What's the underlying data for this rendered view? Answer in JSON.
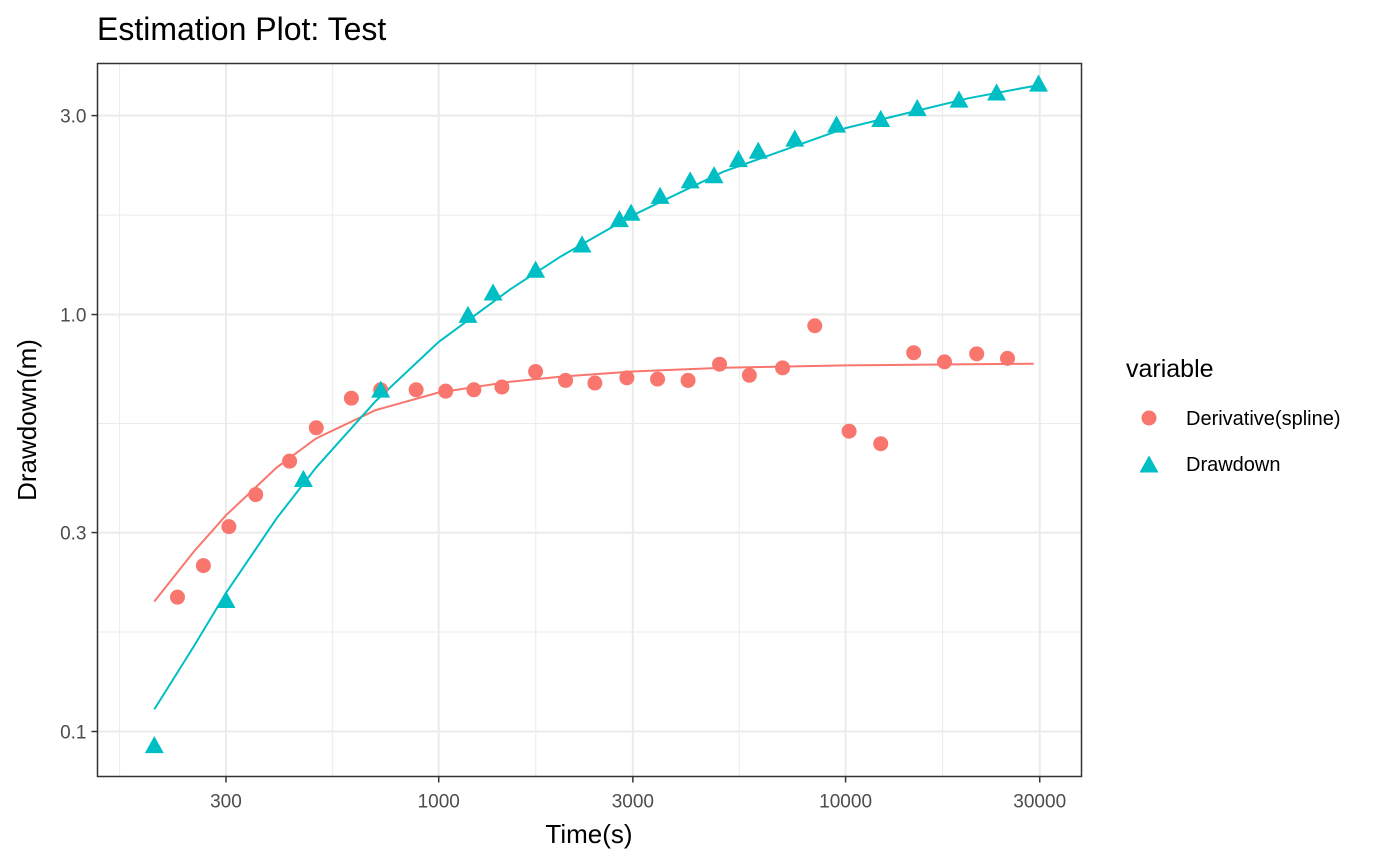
{
  "chart_data": {
    "type": "scatter",
    "title": "Estimation Plot: Test",
    "xlabel": "Time(s)",
    "ylabel": "Drawdown(m)",
    "x_scale": "log10",
    "y_scale": "log10",
    "xlim": [
      145,
      38000
    ],
    "ylim": [
      0.078,
      4.0
    ],
    "grid": true,
    "x_ticks": [
      300,
      1000,
      3000,
      10000,
      30000
    ],
    "x_tick_labels": [
      "300",
      "1000",
      "3000",
      "10000",
      "30000"
    ],
    "y_ticks": [
      0.1,
      0.3,
      1.0,
      3.0
    ],
    "y_tick_labels": [
      "0.1",
      "0.3",
      "1.0",
      "3.0"
    ],
    "legend": {
      "title": "variable",
      "position": "right",
      "entries": [
        "Derivative(spline)",
        "Drawdown"
      ]
    },
    "series": [
      {
        "name": "Derivative(spline)",
        "color": "#F8766D",
        "marker": "circle",
        "points": [
          {
            "x": 228,
            "y": 0.21
          },
          {
            "x": 264,
            "y": 0.25
          },
          {
            "x": 305,
            "y": 0.31
          },
          {
            "x": 355,
            "y": 0.37
          },
          {
            "x": 430,
            "y": 0.445
          },
          {
            "x": 500,
            "y": 0.535
          },
          {
            "x": 610,
            "y": 0.63
          },
          {
            "x": 720,
            "y": 0.66
          },
          {
            "x": 880,
            "y": 0.66
          },
          {
            "x": 1040,
            "y": 0.655
          },
          {
            "x": 1220,
            "y": 0.66
          },
          {
            "x": 1430,
            "y": 0.67
          },
          {
            "x": 1730,
            "y": 0.73
          },
          {
            "x": 2050,
            "y": 0.695
          },
          {
            "x": 2420,
            "y": 0.685
          },
          {
            "x": 2900,
            "y": 0.705
          },
          {
            "x": 3450,
            "y": 0.7
          },
          {
            "x": 4100,
            "y": 0.695
          },
          {
            "x": 4900,
            "y": 0.76
          },
          {
            "x": 5800,
            "y": 0.715
          },
          {
            "x": 7000,
            "y": 0.745
          },
          {
            "x": 8400,
            "y": 0.94
          },
          {
            "x": 10200,
            "y": 0.525
          },
          {
            "x": 12200,
            "y": 0.49
          },
          {
            "x": 14700,
            "y": 0.81
          },
          {
            "x": 17500,
            "y": 0.77
          },
          {
            "x": 21000,
            "y": 0.805
          },
          {
            "x": 25000,
            "y": 0.785
          }
        ],
        "fit_line": [
          {
            "x": 200,
            "y": 0.205
          },
          {
            "x": 250,
            "y": 0.27
          },
          {
            "x": 300,
            "y": 0.33
          },
          {
            "x": 400,
            "y": 0.43
          },
          {
            "x": 500,
            "y": 0.505
          },
          {
            "x": 700,
            "y": 0.59
          },
          {
            "x": 1000,
            "y": 0.65
          },
          {
            "x": 1500,
            "y": 0.69
          },
          {
            "x": 2000,
            "y": 0.71
          },
          {
            "x": 3000,
            "y": 0.73
          },
          {
            "x": 5000,
            "y": 0.745
          },
          {
            "x": 10000,
            "y": 0.755
          },
          {
            "x": 20000,
            "y": 0.76
          },
          {
            "x": 29000,
            "y": 0.762
          }
        ]
      },
      {
        "name": "Drawdown",
        "color": "#00BFC4",
        "marker": "triangle",
        "points": [
          {
            "x": 200,
            "y": 0.092
          },
          {
            "x": 300,
            "y": 0.205
          },
          {
            "x": 465,
            "y": 0.4
          },
          {
            "x": 720,
            "y": 0.655
          },
          {
            "x": 1180,
            "y": 0.99
          },
          {
            "x": 1360,
            "y": 1.12
          },
          {
            "x": 1730,
            "y": 1.27
          },
          {
            "x": 2250,
            "y": 1.46
          },
          {
            "x": 2780,
            "y": 1.68
          },
          {
            "x": 2970,
            "y": 1.74
          },
          {
            "x": 3500,
            "y": 1.91
          },
          {
            "x": 4150,
            "y": 2.08
          },
          {
            "x": 4750,
            "y": 2.14
          },
          {
            "x": 5450,
            "y": 2.34
          },
          {
            "x": 6100,
            "y": 2.45
          },
          {
            "x": 7500,
            "y": 2.62
          },
          {
            "x": 9500,
            "y": 2.83
          },
          {
            "x": 12200,
            "y": 2.92
          },
          {
            "x": 15000,
            "y": 3.1
          },
          {
            "x": 19000,
            "y": 3.25
          },
          {
            "x": 23500,
            "y": 3.38
          },
          {
            "x": 29800,
            "y": 3.55
          }
        ],
        "fit_line": [
          {
            "x": 200,
            "y": 0.113
          },
          {
            "x": 250,
            "y": 0.16
          },
          {
            "x": 300,
            "y": 0.215
          },
          {
            "x": 400,
            "y": 0.325
          },
          {
            "x": 500,
            "y": 0.43
          },
          {
            "x": 700,
            "y": 0.62
          },
          {
            "x": 1000,
            "y": 0.86
          },
          {
            "x": 1500,
            "y": 1.15
          },
          {
            "x": 2000,
            "y": 1.38
          },
          {
            "x": 3000,
            "y": 1.73
          },
          {
            "x": 5000,
            "y": 2.2
          },
          {
            "x": 10000,
            "y": 2.8
          },
          {
            "x": 20000,
            "y": 3.3
          },
          {
            "x": 29800,
            "y": 3.55
          }
        ]
      }
    ]
  }
}
